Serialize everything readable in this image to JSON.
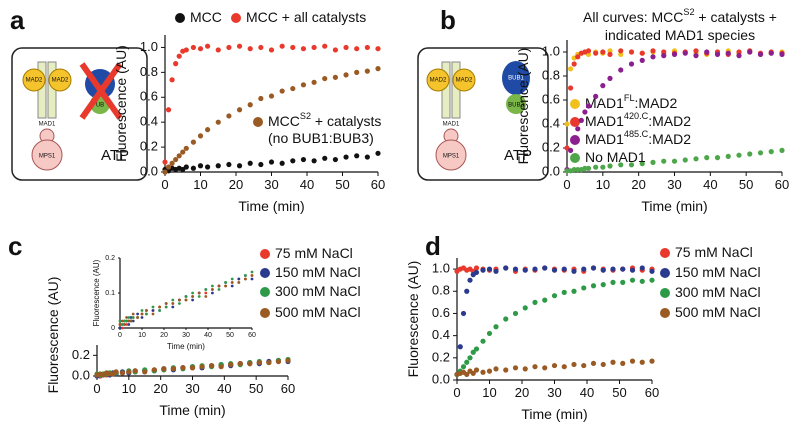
{
  "chart_data": [
    {
      "type": "scatter",
      "label": "a",
      "x_label": "Time (min)",
      "y_label": "Fluorescence (AU)",
      "x": [
        0,
        1,
        2,
        3,
        4,
        5,
        6,
        8,
        10,
        12,
        15,
        18,
        21,
        24,
        27,
        30,
        33,
        36,
        39,
        42,
        45,
        48,
        51,
        54,
        57,
        60
      ],
      "xlim": [
        0,
        60
      ],
      "ylim": [
        0,
        1.1
      ],
      "xticks": [
        0,
        10,
        20,
        30,
        40,
        50,
        60
      ],
      "yticks": [
        {
          "value": 0,
          "label": "0.0"
        },
        0.2,
        0.4,
        0.6,
        0.8,
        {
          "value": 1,
          "label": "1.0"
        }
      ],
      "series": [
        {
          "name": [
            [
              "MCC"
            ]
          ],
          "color": "#111111",
          "values": [
            0.02,
            0.01,
            0.03,
            0.02,
            0.03,
            0.02,
            0.04,
            0.03,
            0.05,
            0.04,
            0.05,
            0.06,
            0.05,
            0.07,
            0.06,
            0.08,
            0.07,
            0.09,
            0.1,
            0.09,
            0.11,
            0.1,
            0.12,
            0.13,
            0.12,
            0.15
          ]
        },
        {
          "name": [
            [
              "MCC + all catalysts"
            ]
          ],
          "color": "#e8392c",
          "values": [
            0.08,
            0.5,
            0.74,
            0.87,
            0.93,
            0.97,
            0.98,
            1.0,
            0.99,
            1.01,
            0.98,
            1.0,
            1.01,
            0.99,
            1.0,
            0.98,
            1.01,
            1.0,
            0.99,
            1.0,
            1.01,
            0.98,
            1.0,
            0.99,
            1.0,
            0.99
          ]
        },
        {
          "name": [
            [
              "MCC",
              "S2",
              " + catalysts"
            ],
            [
              "(no BUB1:BUB3)"
            ]
          ],
          "color": "#9a5a23",
          "values": [
            0.0,
            0.04,
            0.07,
            0.1,
            0.13,
            0.16,
            0.19,
            0.24,
            0.29,
            0.34,
            0.4,
            0.45,
            0.5,
            0.54,
            0.59,
            0.61,
            0.65,
            0.67,
            0.7,
            0.72,
            0.75,
            0.76,
            0.78,
            0.8,
            0.81,
            0.83
          ]
        }
      ]
    },
    {
      "type": "scatter",
      "label": "b",
      "title": [
        [
          "All curves: MCC",
          "S2",
          " + catalysts +"
        ],
        [
          "indicated MAD1 species"
        ]
      ],
      "x_label": "Time (min)",
      "y_label": "Fluorescence (AU)",
      "x": [
        0,
        1,
        2,
        3,
        4,
        5,
        6,
        8,
        10,
        12,
        15,
        18,
        21,
        24,
        27,
        30,
        33,
        36,
        39,
        42,
        45,
        48,
        51,
        54,
        57,
        60
      ],
      "xlim": [
        0,
        60
      ],
      "ylim": [
        0,
        1.1
      ],
      "xticks": [
        0,
        10,
        20,
        30,
        40,
        50,
        60
      ],
      "yticks": [
        {
          "value": 0,
          "label": "0.0"
        },
        0.2,
        0.4,
        0.6,
        0.8,
        {
          "value": 1,
          "label": "1.0"
        }
      ],
      "series": [
        {
          "name": [
            [
              "MAD1",
              "FL",
              ":MAD2"
            ]
          ],
          "color": "#f2c01e",
          "values": [
            0.4,
            0.86,
            0.95,
            0.98,
            0.99,
            1.0,
            0.98,
            1.0,
            0.99,
            1.01,
            0.98,
            1.0,
            0.99,
            1.0,
            0.98,
            1.01,
            1.0,
            0.99,
            0.98,
            1.0,
            1.01,
            0.99,
            1.0,
            0.98,
            0.99,
            1.0
          ]
        },
        {
          "name": [
            [
              "MAD1",
              "420.C",
              ":MAD2"
            ]
          ],
          "color": "#e8392c",
          "values": [
            0.2,
            0.7,
            0.9,
            0.96,
            0.99,
            1.0,
            1.01,
            0.99,
            1.0,
            0.98,
            1.01,
            1.0,
            0.99,
            1.01,
            1.0,
            0.99,
            1.0,
            1.01,
            0.99,
            1.0,
            0.98,
            1.0,
            1.01,
            0.99,
            1.0,
            0.99
          ]
        },
        {
          "name": [
            [
              "MAD1",
              "485.C",
              ":MAD2"
            ]
          ],
          "color": "#8b1f8f",
          "values": [
            0.02,
            0.18,
            0.28,
            0.36,
            0.43,
            0.5,
            0.55,
            0.63,
            0.72,
            0.78,
            0.85,
            0.9,
            0.93,
            0.96,
            0.97,
            0.98,
            0.99,
            0.97,
            1.0,
            0.98,
            0.99,
            0.97,
            1.0,
            0.98,
            0.99,
            0.98
          ]
        },
        {
          "name": [
            [
              "No MAD1"
            ]
          ],
          "color": "#4da64a",
          "values": [
            0.01,
            0.01,
            0.02,
            0.02,
            0.02,
            0.03,
            0.03,
            0.04,
            0.04,
            0.05,
            0.06,
            0.06,
            0.07,
            0.08,
            0.09,
            0.09,
            0.1,
            0.11,
            0.12,
            0.12,
            0.13,
            0.14,
            0.15,
            0.16,
            0.17,
            0.18
          ]
        }
      ]
    },
    {
      "type": "scatter",
      "label": "c",
      "x_label": "Time (min)",
      "y_label": "Fluorescence (AU)",
      "x": [
        0,
        1,
        2,
        3,
        4,
        5,
        6,
        8,
        10,
        12,
        15,
        18,
        21,
        24,
        27,
        30,
        33,
        36,
        39,
        42,
        45,
        48,
        51,
        54,
        57,
        60
      ],
      "xlim": [
        0,
        60
      ],
      "ylim": [
        0,
        0.3
      ],
      "xticks": [
        0,
        10,
        20,
        30,
        40,
        50,
        60
      ],
      "yticks": [
        {
          "value": 0,
          "label": "0.0"
        },
        0.2
      ],
      "series": [
        {
          "name": [
            [
              "75 mM NaCl"
            ]
          ],
          "color": "#e8392c",
          "values": [
            0.01,
            0.0,
            0.02,
            0.01,
            0.02,
            0.02,
            0.03,
            0.03,
            0.04,
            0.04,
            0.05,
            0.06,
            0.06,
            0.07,
            0.08,
            0.08,
            0.09,
            0.1,
            0.1,
            0.11,
            0.12,
            0.12,
            0.13,
            0.14,
            0.14,
            0.15
          ]
        },
        {
          "name": [
            [
              "150 mM NaCl"
            ]
          ],
          "color": "#2a3a8f",
          "values": [
            0.0,
            0.01,
            0.01,
            0.02,
            0.01,
            0.03,
            0.02,
            0.04,
            0.03,
            0.05,
            0.05,
            0.05,
            0.07,
            0.06,
            0.08,
            0.09,
            0.08,
            0.1,
            0.11,
            0.1,
            0.12,
            0.13,
            0.12,
            0.14,
            0.15,
            0.14
          ]
        },
        {
          "name": [
            [
              "300 mM NaCl"
            ]
          ],
          "color": "#2e9a48",
          "values": [
            0.02,
            0.01,
            0.02,
            0.02,
            0.03,
            0.02,
            0.03,
            0.03,
            0.05,
            0.04,
            0.06,
            0.05,
            0.06,
            0.08,
            0.07,
            0.09,
            0.1,
            0.09,
            0.11,
            0.12,
            0.11,
            0.13,
            0.14,
            0.13,
            0.15,
            0.16
          ]
        },
        {
          "name": [
            [
              "500 mM NaCl"
            ]
          ],
          "color": "#9a5a23",
          "values": [
            0.01,
            0.02,
            0.01,
            0.03,
            0.02,
            0.02,
            0.04,
            0.03,
            0.04,
            0.05,
            0.04,
            0.06,
            0.07,
            0.07,
            0.08,
            0.08,
            0.09,
            0.1,
            0.09,
            0.11,
            0.12,
            0.12,
            0.13,
            0.13,
            0.14,
            0.15
          ]
        }
      ]
    },
    {
      "type": "scatter",
      "x_label": "Time (min)",
      "y_label": "Fluorescence (AU)",
      "x": [
        0,
        1,
        2,
        3,
        4,
        5,
        6,
        8,
        10,
        12,
        15,
        18,
        21,
        24,
        27,
        30,
        33,
        36,
        39,
        42,
        45,
        48,
        51,
        54,
        57,
        60
      ],
      "xlim": [
        0,
        60
      ],
      "ylim": [
        0,
        0.2
      ],
      "xticks": [
        0,
        10,
        20,
        30,
        40,
        50,
        60
      ],
      "yticks": [
        0,
        0.1,
        0.2
      ],
      "series": [
        {
          "color": "#e8392c",
          "values": [
            0.01,
            0.0,
            0.02,
            0.01,
            0.02,
            0.02,
            0.03,
            0.03,
            0.04,
            0.04,
            0.05,
            0.06,
            0.06,
            0.07,
            0.08,
            0.08,
            0.09,
            0.1,
            0.1,
            0.11,
            0.12,
            0.12,
            0.13,
            0.14,
            0.14,
            0.15
          ]
        },
        {
          "color": "#2a3a8f",
          "values": [
            0.0,
            0.01,
            0.01,
            0.02,
            0.01,
            0.03,
            0.02,
            0.04,
            0.03,
            0.05,
            0.05,
            0.05,
            0.07,
            0.06,
            0.08,
            0.09,
            0.08,
            0.1,
            0.11,
            0.1,
            0.12,
            0.13,
            0.12,
            0.14,
            0.15,
            0.14
          ]
        },
        {
          "color": "#2e9a48",
          "values": [
            0.02,
            0.01,
            0.02,
            0.02,
            0.03,
            0.02,
            0.03,
            0.03,
            0.05,
            0.04,
            0.06,
            0.05,
            0.06,
            0.08,
            0.07,
            0.09,
            0.1,
            0.09,
            0.11,
            0.12,
            0.11,
            0.13,
            0.14,
            0.13,
            0.15,
            0.16
          ]
        },
        {
          "color": "#9a5a23",
          "values": [
            0.01,
            0.02,
            0.01,
            0.03,
            0.02,
            0.02,
            0.04,
            0.03,
            0.04,
            0.05,
            0.04,
            0.06,
            0.07,
            0.07,
            0.08,
            0.08,
            0.09,
            0.1,
            0.09,
            0.11,
            0.12,
            0.12,
            0.13,
            0.13,
            0.14,
            0.15
          ]
        }
      ]
    },
    {
      "type": "scatter",
      "label": "d",
      "x_label": "Time (min)",
      "y_label": "Fluorescence (AU)",
      "x": [
        0,
        1,
        2,
        3,
        4,
        5,
        6,
        8,
        10,
        12,
        15,
        18,
        21,
        24,
        27,
        30,
        33,
        36,
        39,
        42,
        45,
        48,
        51,
        54,
        57,
        60
      ],
      "xlim": [
        0,
        60
      ],
      "ylim": [
        0,
        1.1
      ],
      "xticks": [
        0,
        10,
        20,
        30,
        40,
        50,
        60
      ],
      "yticks": [
        {
          "value": 0,
          "label": "0.0"
        },
        0.2,
        0.4,
        0.6,
        0.8,
        {
          "value": 1,
          "label": "1.0"
        }
      ],
      "series": [
        {
          "name": [
            [
              "75 mM NaCl"
            ]
          ],
          "color": "#e8392c",
          "values": [
            0.98,
            1.0,
            1.01,
            0.99,
            1.0,
            0.98,
            1.01,
            1.0,
            0.99,
            1.0,
            1.01,
            0.98,
            1.0,
            0.99,
            1.01,
            1.0,
            0.99,
            1.0,
            0.98,
            1.01,
            1.0,
            0.99,
            1.0,
            1.01,
            0.99,
            1.0
          ]
        },
        {
          "name": [
            [
              "150 mM NaCl"
            ]
          ],
          "color": "#2a3a8f",
          "values": [
            0.05,
            0.3,
            0.6,
            0.8,
            0.9,
            0.95,
            0.97,
            0.99,
            1.0,
            0.98,
            1.01,
            1.0,
            0.99,
            1.0,
            1.01,
            0.99,
            1.0,
            0.98,
            1.0,
            1.01,
            0.99,
            1.0,
            1.0,
            0.99,
            1.01,
            0.98
          ]
        },
        {
          "name": [
            [
              "300 mM NaCl"
            ]
          ],
          "color": "#2e9a48",
          "values": [
            0.05,
            0.08,
            0.12,
            0.16,
            0.2,
            0.25,
            0.28,
            0.35,
            0.42,
            0.48,
            0.55,
            0.6,
            0.65,
            0.7,
            0.72,
            0.76,
            0.79,
            0.8,
            0.83,
            0.85,
            0.86,
            0.88,
            0.88,
            0.9,
            0.89,
            0.9
          ]
        },
        {
          "name": [
            [
              "500 mM NaCl"
            ]
          ],
          "color": "#9a5a23",
          "values": [
            0.05,
            0.06,
            0.07,
            0.05,
            0.08,
            0.06,
            0.09,
            0.07,
            0.08,
            0.1,
            0.09,
            0.11,
            0.1,
            0.12,
            0.11,
            0.13,
            0.12,
            0.14,
            0.13,
            0.15,
            0.14,
            0.16,
            0.15,
            0.17,
            0.16,
            0.17
          ]
        }
      ]
    }
  ],
  "diagrams": {
    "a": {
      "mad2": "MAD2",
      "mad1": "MAD1",
      "mps1": "MPS1",
      "atp": "ATP",
      "ub": "UB"
    },
    "b": {
      "mad2": "MAD2",
      "mad1": "MAD1",
      "mps1": "MPS1",
      "atp": "ATP",
      "bub1": "BUB1",
      "bub3": "BUB3"
    }
  }
}
